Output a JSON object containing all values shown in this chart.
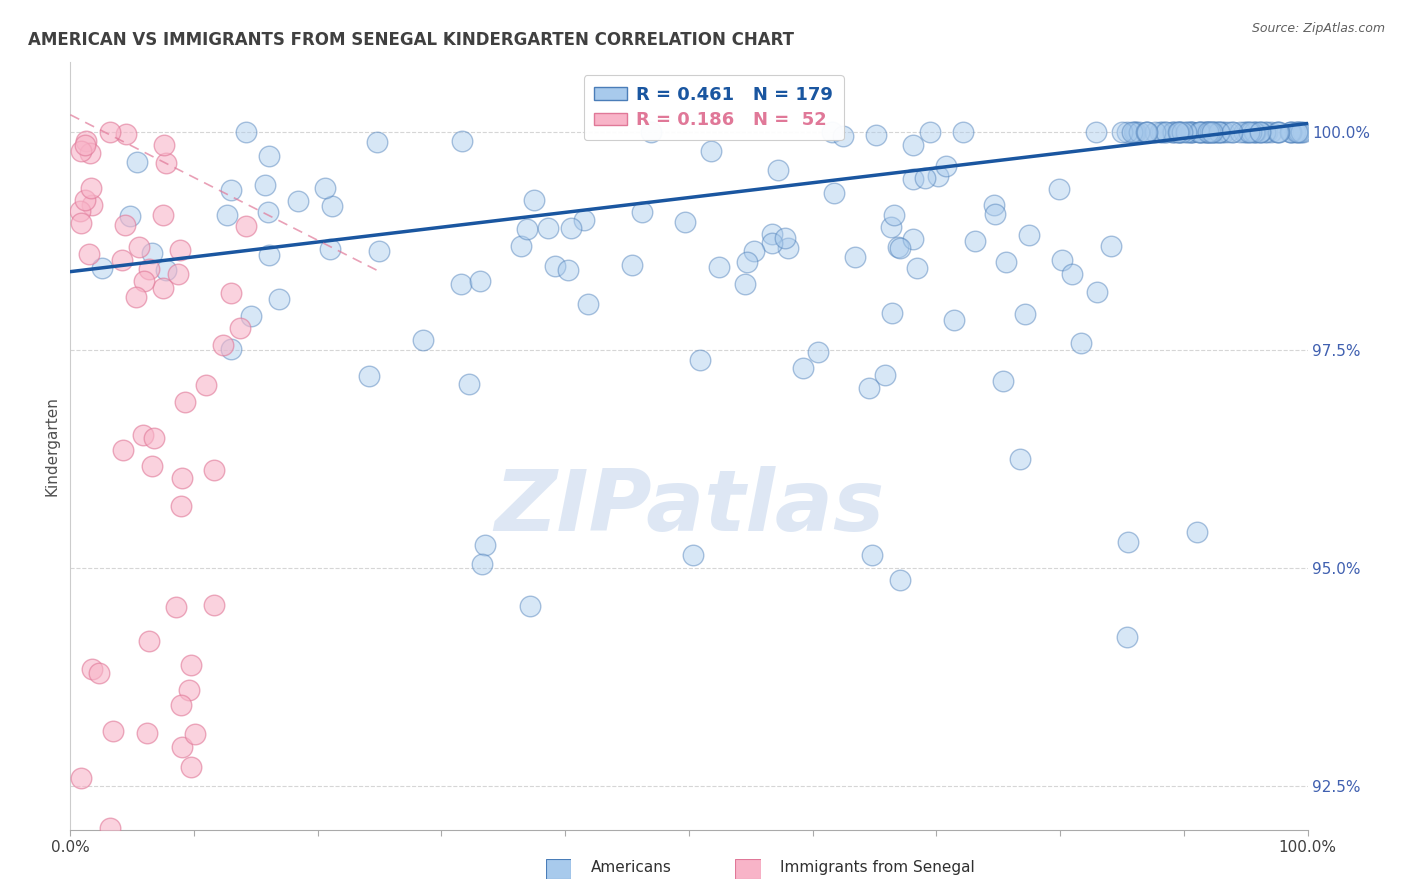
{
  "title": "AMERICAN VS IMMIGRANTS FROM SENEGAL KINDERGARTEN CORRELATION CHART",
  "source": "Source: ZipAtlas.com",
  "ylabel": "Kindergarten",
  "watermark": "ZIPatlas",
  "xmin": 0.0,
  "xmax": 1.0,
  "ymin": 0.92,
  "ymax": 1.008,
  "yticks": [
    0.925,
    0.95,
    0.975,
    1.0
  ],
  "ytick_labels": [
    "92.5%",
    "95.0%",
    "97.5%",
    "100.0%"
  ],
  "legend_blue_r": "R = 0.461",
  "legend_blue_n": "N = 179",
  "legend_pink_r": "R = 0.186",
  "legend_pink_n": "N =  52",
  "blue_fill": "#A8CAEC",
  "blue_edge": "#4A7DB8",
  "pink_fill": "#F8B4C8",
  "pink_edge": "#E07898",
  "trendline_blue_color": "#1A56A0",
  "trendline_pink_color": "#E07898",
  "background_color": "#FFFFFF",
  "grid_color": "#CCCCCC",
  "title_color": "#404040",
  "ytick_color": "#4060B0",
  "xtick_color": "#404040",
  "legend_text_blue": "#1A56A0",
  "legend_text_pink": "#E07898",
  "watermark_color": "#C8D8EE",
  "blue_trendline_x0": 0.0,
  "blue_trendline_y0": 0.984,
  "blue_trendline_x1": 1.0,
  "blue_trendline_y1": 1.001,
  "pink_trendline_x0": 0.0,
  "pink_trendline_y0": 1.002,
  "pink_trendline_x1": 0.25,
  "pink_trendline_y1": 0.984,
  "scatter_size": 220,
  "scatter_alpha": 0.45,
  "scatter_linewidth": 1.0
}
